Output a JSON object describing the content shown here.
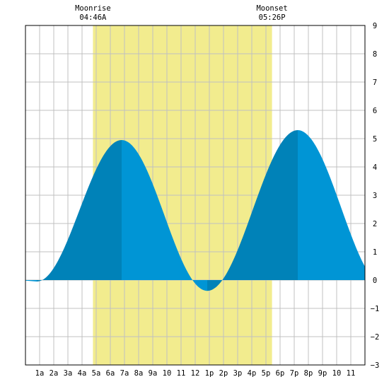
{
  "chart_data": {
    "type": "area",
    "title": "",
    "xlabel": "",
    "ylabel": "",
    "xlim": [
      0,
      24
    ],
    "ylim": [
      -3,
      9
    ],
    "yticks": [
      -3,
      -2,
      -1,
      0,
      1,
      2,
      3,
      4,
      5,
      6,
      7,
      8,
      9
    ],
    "ytick_labels": [
      "−3",
      "−2",
      "−1",
      "0",
      "1",
      "2",
      "3",
      "4",
      "5",
      "6",
      "7",
      "8",
      "9"
    ],
    "xticks": [
      1,
      2,
      3,
      4,
      5,
      6,
      7,
      8,
      9,
      10,
      11,
      12,
      13,
      14,
      15,
      16,
      17,
      18,
      19,
      20,
      21,
      22,
      23
    ],
    "xtick_labels": [
      "1a",
      "2a",
      "3a",
      "4a",
      "5a",
      "6a",
      "7a",
      "8a",
      "9a",
      "10",
      "11",
      "12",
      "1p",
      "2p",
      "3p",
      "4p",
      "5p",
      "6p",
      "7p",
      "8p",
      "9p",
      "10",
      "11"
    ],
    "grid": true,
    "moon": {
      "rise_label": "Moonrise",
      "rise_time": "04:46A",
      "rise_hour": 4.77,
      "set_label": "Moonset",
      "set_time": "05:26P",
      "set_hour": 17.43
    },
    "tide": {
      "extremes": [
        {
          "hour": 0.8,
          "height": -0.05,
          "kind": "low"
        },
        {
          "hour": 6.8,
          "height": 4.95,
          "kind": "high"
        },
        {
          "hour": 12.85,
          "height": -0.38,
          "kind": "low"
        },
        {
          "hour": 19.25,
          "height": 5.3,
          "kind": "high"
        },
        {
          "hour": 25.4,
          "height": -0.2,
          "kind": "low"
        }
      ],
      "start": {
        "hour": 0,
        "height": -0.02
      }
    },
    "colors": {
      "moon_band": "#f2ec8e",
      "rising_fill": "#0082b8",
      "falling_fill": "#0095d5",
      "grid": "#c0c0c0",
      "axis": "#000000",
      "background": "#ffffff"
    }
  }
}
